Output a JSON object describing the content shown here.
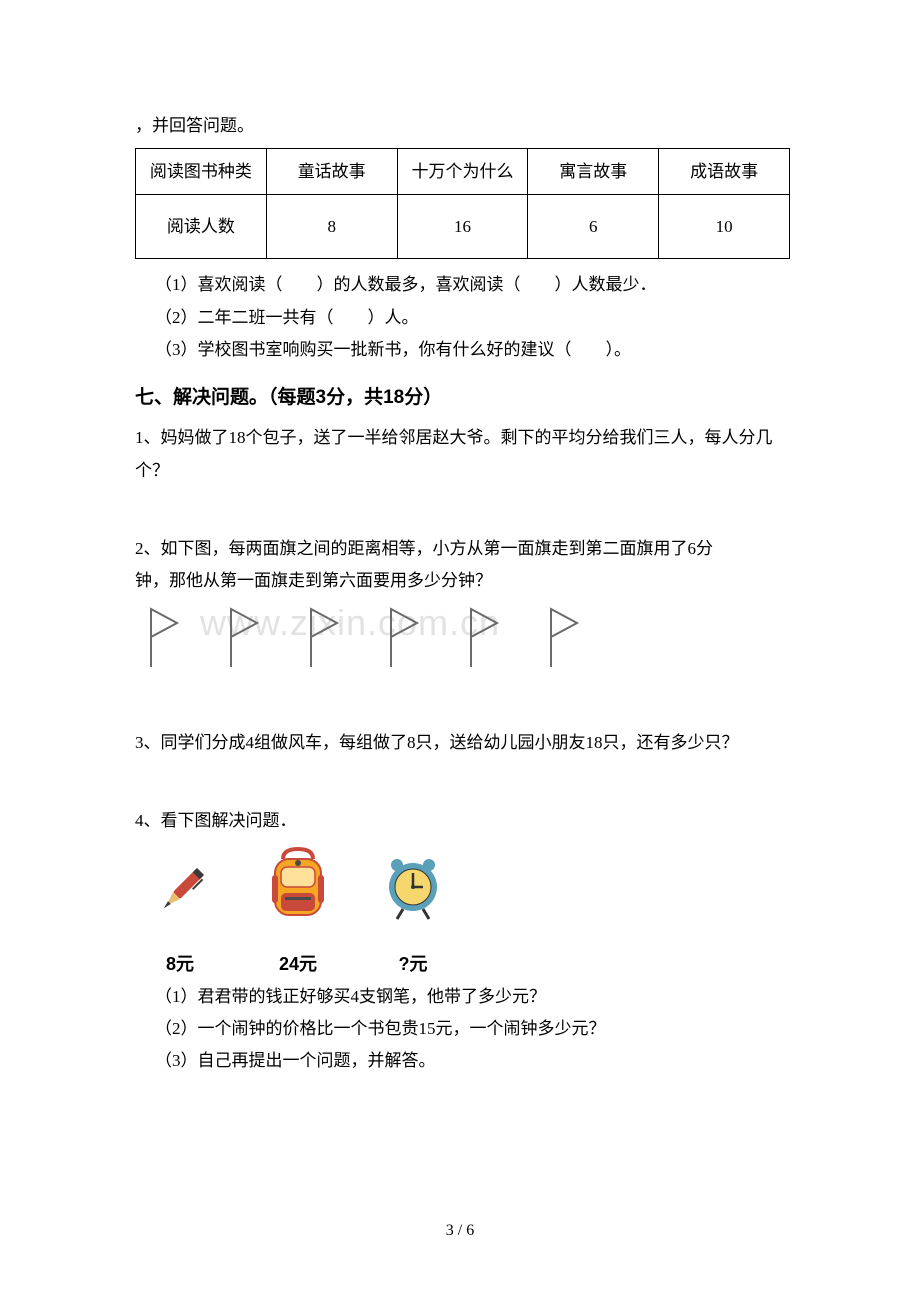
{
  "intro_line": "，并回答问题。",
  "table": {
    "headers": [
      "阅读图书种类",
      "童话故事",
      "十万个为什么",
      "寓言故事",
      "成语故事"
    ],
    "row_label": "阅读人数",
    "values": [
      "8",
      "16",
      "6",
      "10"
    ]
  },
  "table_questions": {
    "q1": "（1）喜欢阅读（　　）的人数最多，喜欢阅读（　　）人数最少．",
    "q2": "（2）二年二班一共有（　　）人。",
    "q3": "（3）学校图书室响购买一批新书，你有什么好的建议（　　）。"
  },
  "section7_title": "七、解决问题。（每题3分，共18分）",
  "problems": {
    "p1": "1、妈妈做了18个包子，送了一半给邻居赵大爷。剩下的平均分给我们三人，每人分几个？",
    "p2a": "2、如下图，每两面旗之间的距离相等，小方从第一面旗走到第二面旗用了6分",
    "p2b": "钟，那他从第一面旗走到第六面要用多少分钟？",
    "p3": "3、同学们分成4组做风车，每组做了8只，送给幼儿园小朋友18只，还有多少只？",
    "p4_intro": "4、看下图解决问题．",
    "p4_q1": "（1）君君带的钱正好够买4支钢笔，他带了多少元？",
    "p4_q2": "（2）一个闹钟的价格比一个书包贵15元，一个闹钟多少元？",
    "p4_q3": "（3）自己再提出一个问题，并解答。"
  },
  "items": {
    "pen_label": "8元",
    "bag_label": "24元",
    "clock_label": "?元"
  },
  "watermark": "www.zixin.com.cn",
  "footer": "3 / 6",
  "colors": {
    "pen_body": "#c94a3a",
    "pen_nib": "#3a3a3a",
    "bag_body": "#f5a623",
    "bag_trim": "#c94a3a",
    "bag_dark": "#4a4a4a",
    "clock_ring": "#5aa0b8",
    "clock_face": "#f5d76e",
    "clock_hand": "#333333",
    "flag_stroke": "#6a6a6a"
  },
  "flag_count": 6
}
